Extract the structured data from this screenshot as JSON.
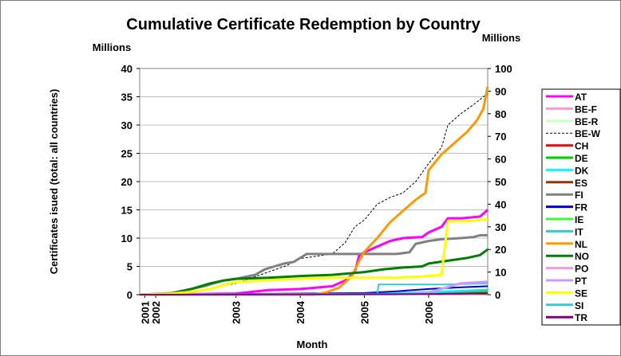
{
  "chart_data": {
    "type": "line",
    "title": "Cumulative Certificate Redemption by Country",
    "left_unit": "Millions",
    "right_unit": "Millions",
    "ylabel": "Certificates isued (total: all countries)",
    "xlabel": "Month",
    "ylim": [
      0,
      40
    ],
    "y2lim": [
      0,
      100
    ],
    "y_ticks": [
      0,
      5,
      10,
      15,
      20,
      25,
      30,
      35,
      40
    ],
    "y2_ticks": [
      0,
      10,
      20,
      30,
      40,
      50,
      60,
      70,
      80,
      90,
      100
    ],
    "xlim": [
      2001.5,
      2006.92
    ],
    "x_ticks": [
      {
        "label": "2001",
        "x": 2001.58
      },
      {
        "label": "2002",
        "x": 2001.75
      },
      {
        "label": "2003",
        "x": 2003.0
      },
      {
        "label": "2004",
        "x": 2004.0
      },
      {
        "label": "2005",
        "x": 2005.0
      },
      {
        "label": "2006",
        "x": 2006.0
      }
    ],
    "grid": "horizontal",
    "legend_position": "right",
    "series": [
      {
        "name": "AT",
        "color": "#ff00ff",
        "width": 3,
        "points": [
          [
            2001.5,
            0
          ],
          [
            2003.0,
            0.2
          ],
          [
            2003.5,
            0.8
          ],
          [
            2004.0,
            1.0
          ],
          [
            2004.5,
            1.5
          ],
          [
            2004.7,
            2.5
          ],
          [
            2004.85,
            4.0
          ],
          [
            2004.92,
            7.0
          ],
          [
            2005.0,
            7.5
          ],
          [
            2005.2,
            8.5
          ],
          [
            2005.4,
            9.5
          ],
          [
            2005.6,
            10.0
          ],
          [
            2005.9,
            10.2
          ],
          [
            2006.0,
            11.0
          ],
          [
            2006.2,
            12.0
          ],
          [
            2006.3,
            13.5
          ],
          [
            2006.5,
            13.5
          ],
          [
            2006.7,
            13.7
          ],
          [
            2006.8,
            13.8
          ],
          [
            2006.92,
            15.0
          ]
        ]
      },
      {
        "name": "BE-F",
        "color": "#ff99cc",
        "width": 3,
        "points": [
          [
            2001.5,
            0
          ],
          [
            2005.0,
            0.1
          ],
          [
            2006.0,
            0.3
          ],
          [
            2006.4,
            0.5
          ],
          [
            2006.92,
            0.7
          ]
        ]
      },
      {
        "name": "BE-R",
        "color": "#ccffcc",
        "width": 3,
        "points": [
          [
            2001.5,
            0
          ],
          [
            2005.5,
            0.1
          ],
          [
            2006.92,
            0.3
          ]
        ]
      },
      {
        "name": "BE-W",
        "color": "#000000",
        "width": 1,
        "dash": "3,2",
        "axis": "right",
        "points": [
          [
            2001.5,
            0
          ],
          [
            2002.0,
            0.5
          ],
          [
            2002.5,
            2.0
          ],
          [
            2002.8,
            4.0
          ],
          [
            2003.0,
            5.0
          ],
          [
            2003.5,
            10.0
          ],
          [
            2003.8,
            13.0
          ],
          [
            2004.0,
            16.0
          ],
          [
            2004.5,
            18.0
          ],
          [
            2004.7,
            23.0
          ],
          [
            2004.85,
            30.0
          ],
          [
            2005.0,
            33.0
          ],
          [
            2005.2,
            40.0
          ],
          [
            2005.4,
            43.0
          ],
          [
            2005.6,
            45.0
          ],
          [
            2005.8,
            50.0
          ],
          [
            2006.0,
            58.0
          ],
          [
            2006.2,
            65.0
          ],
          [
            2006.3,
            75.0
          ],
          [
            2006.5,
            80.0
          ],
          [
            2006.7,
            84.0
          ],
          [
            2006.92,
            89.0
          ]
        ]
      },
      {
        "name": "CH",
        "color": "#ff0000",
        "width": 2,
        "points": [
          [
            2001.5,
            0
          ],
          [
            2006.0,
            0.1
          ],
          [
            2006.92,
            0.3
          ]
        ]
      },
      {
        "name": "DE",
        "color": "#00cc00",
        "width": 2,
        "points": [
          [
            2001.5,
            0
          ],
          [
            2006.0,
            0.1
          ],
          [
            2006.5,
            0.3
          ],
          [
            2006.92,
            0.6
          ]
        ]
      },
      {
        "name": "DK",
        "color": "#00ffff",
        "width": 2,
        "points": [
          [
            2001.5,
            0
          ],
          [
            2005.0,
            0.2
          ],
          [
            2006.0,
            0.5
          ],
          [
            2006.92,
            0.9
          ]
        ]
      },
      {
        "name": "ES",
        "color": "#993300",
        "width": 2,
        "points": [
          [
            2001.5,
            0
          ],
          [
            2006.0,
            0.1
          ],
          [
            2006.92,
            0.2
          ]
        ]
      },
      {
        "name": "FI",
        "color": "#808080",
        "width": 3,
        "points": [
          [
            2001.5,
            0
          ],
          [
            2002.0,
            0.3
          ],
          [
            2002.3,
            1.0
          ],
          [
            2002.5,
            1.5
          ],
          [
            2002.8,
            2.5
          ],
          [
            2003.0,
            2.8
          ],
          [
            2003.3,
            3.5
          ],
          [
            2003.45,
            4.5
          ],
          [
            2003.6,
            5.0
          ],
          [
            2003.75,
            5.5
          ],
          [
            2003.9,
            5.8
          ],
          [
            2004.0,
            6.5
          ],
          [
            2004.1,
            7.2
          ],
          [
            2004.5,
            7.2
          ],
          [
            2005.0,
            7.2
          ],
          [
            2005.5,
            7.2
          ],
          [
            2005.7,
            7.5
          ],
          [
            2005.8,
            9.0
          ],
          [
            2006.0,
            9.5
          ],
          [
            2006.2,
            9.8
          ],
          [
            2006.5,
            10.0
          ],
          [
            2006.7,
            10.2
          ],
          [
            2006.8,
            10.5
          ],
          [
            2006.92,
            10.5
          ]
        ]
      },
      {
        "name": "FR",
        "color": "#0000cc",
        "width": 2,
        "points": [
          [
            2001.5,
            0
          ],
          [
            2005.0,
            0.3
          ],
          [
            2005.5,
            0.6
          ],
          [
            2006.0,
            1.0
          ],
          [
            2006.5,
            1.3
          ],
          [
            2006.92,
            1.5
          ]
        ]
      },
      {
        "name": "IE",
        "color": "#33ff33",
        "width": 2,
        "points": [
          [
            2001.5,
            0
          ],
          [
            2006.0,
            0.1
          ],
          [
            2006.92,
            0.4
          ]
        ]
      },
      {
        "name": "IT",
        "color": "#33cccc",
        "width": 2,
        "points": [
          [
            2001.5,
            0
          ],
          [
            2005.2,
            0.1
          ],
          [
            2005.22,
            1.8
          ],
          [
            2006.0,
            1.8
          ],
          [
            2006.3,
            1.8
          ],
          [
            2006.92,
            2.0
          ]
        ]
      },
      {
        "name": "NL",
        "color": "#ff9900",
        "width": 3,
        "axis": "right",
        "points": [
          [
            2001.5,
            0
          ],
          [
            2004.2,
            0
          ],
          [
            2004.4,
            1.0
          ],
          [
            2004.6,
            3.0
          ],
          [
            2004.8,
            8.0
          ],
          [
            2004.92,
            15.0
          ],
          [
            2005.0,
            19.0
          ],
          [
            2005.2,
            25.0
          ],
          [
            2005.4,
            32.0
          ],
          [
            2005.6,
            37.0
          ],
          [
            2005.8,
            42.0
          ],
          [
            2005.95,
            45.0
          ],
          [
            2006.0,
            55.0
          ],
          [
            2006.2,
            62.0
          ],
          [
            2006.4,
            67.0
          ],
          [
            2006.6,
            72.0
          ],
          [
            2006.75,
            77.0
          ],
          [
            2006.85,
            82.0
          ],
          [
            2006.92,
            92.0
          ]
        ]
      },
      {
        "name": "NO",
        "color": "#007f00",
        "width": 3,
        "points": [
          [
            2001.5,
            0
          ],
          [
            2002.0,
            0.2
          ],
          [
            2002.3,
            1.0
          ],
          [
            2002.6,
            2.0
          ],
          [
            2002.8,
            2.5
          ],
          [
            2003.0,
            2.8
          ],
          [
            2003.5,
            3.0
          ],
          [
            2004.0,
            3.3
          ],
          [
            2004.5,
            3.5
          ],
          [
            2005.0,
            4.0
          ],
          [
            2005.3,
            4.5
          ],
          [
            2005.6,
            4.8
          ],
          [
            2005.9,
            5.0
          ],
          [
            2006.0,
            5.5
          ],
          [
            2006.3,
            6.0
          ],
          [
            2006.6,
            6.5
          ],
          [
            2006.8,
            7.0
          ],
          [
            2006.92,
            8.0
          ]
        ]
      },
      {
        "name": "PO",
        "color": "#ff99cc",
        "width": 2,
        "points": [
          [
            2001.5,
            0
          ],
          [
            2006.0,
            0.1
          ],
          [
            2006.92,
            0.3
          ]
        ]
      },
      {
        "name": "PT",
        "color": "#cc99ff",
        "width": 3,
        "points": [
          [
            2001.5,
            0
          ],
          [
            2005.5,
            0.1
          ],
          [
            2006.0,
            0.4
          ],
          [
            2006.5,
            2.0
          ],
          [
            2006.92,
            2.3
          ]
        ]
      },
      {
        "name": "SE",
        "color": "#ffff00",
        "width": 3,
        "points": [
          [
            2001.5,
            0
          ],
          [
            2002.0,
            0.2
          ],
          [
            2002.3,
            0.5
          ],
          [
            2002.6,
            1.0
          ],
          [
            2002.9,
            2.0
          ],
          [
            2003.0,
            2.2
          ],
          [
            2003.3,
            2.4
          ],
          [
            2003.6,
            2.6
          ],
          [
            2004.0,
            2.8
          ],
          [
            2004.5,
            3.0
          ],
          [
            2005.0,
            3.0
          ],
          [
            2005.5,
            3.0
          ],
          [
            2005.9,
            3.2
          ],
          [
            2006.2,
            3.5
          ],
          [
            2006.3,
            13.0
          ],
          [
            2006.6,
            13.0
          ],
          [
            2006.8,
            13.2
          ],
          [
            2006.92,
            13.3
          ]
        ]
      },
      {
        "name": "SI",
        "color": "#33cccc",
        "width": 2,
        "points": [
          [
            2001.5,
            0
          ],
          [
            2006.0,
            0.2
          ],
          [
            2006.92,
            0.8
          ]
        ]
      },
      {
        "name": "TR",
        "color": "#800080",
        "width": 2,
        "points": [
          [
            2001.5,
            0
          ],
          [
            2006.0,
            0.1
          ],
          [
            2006.92,
            0.3
          ]
        ]
      }
    ]
  }
}
